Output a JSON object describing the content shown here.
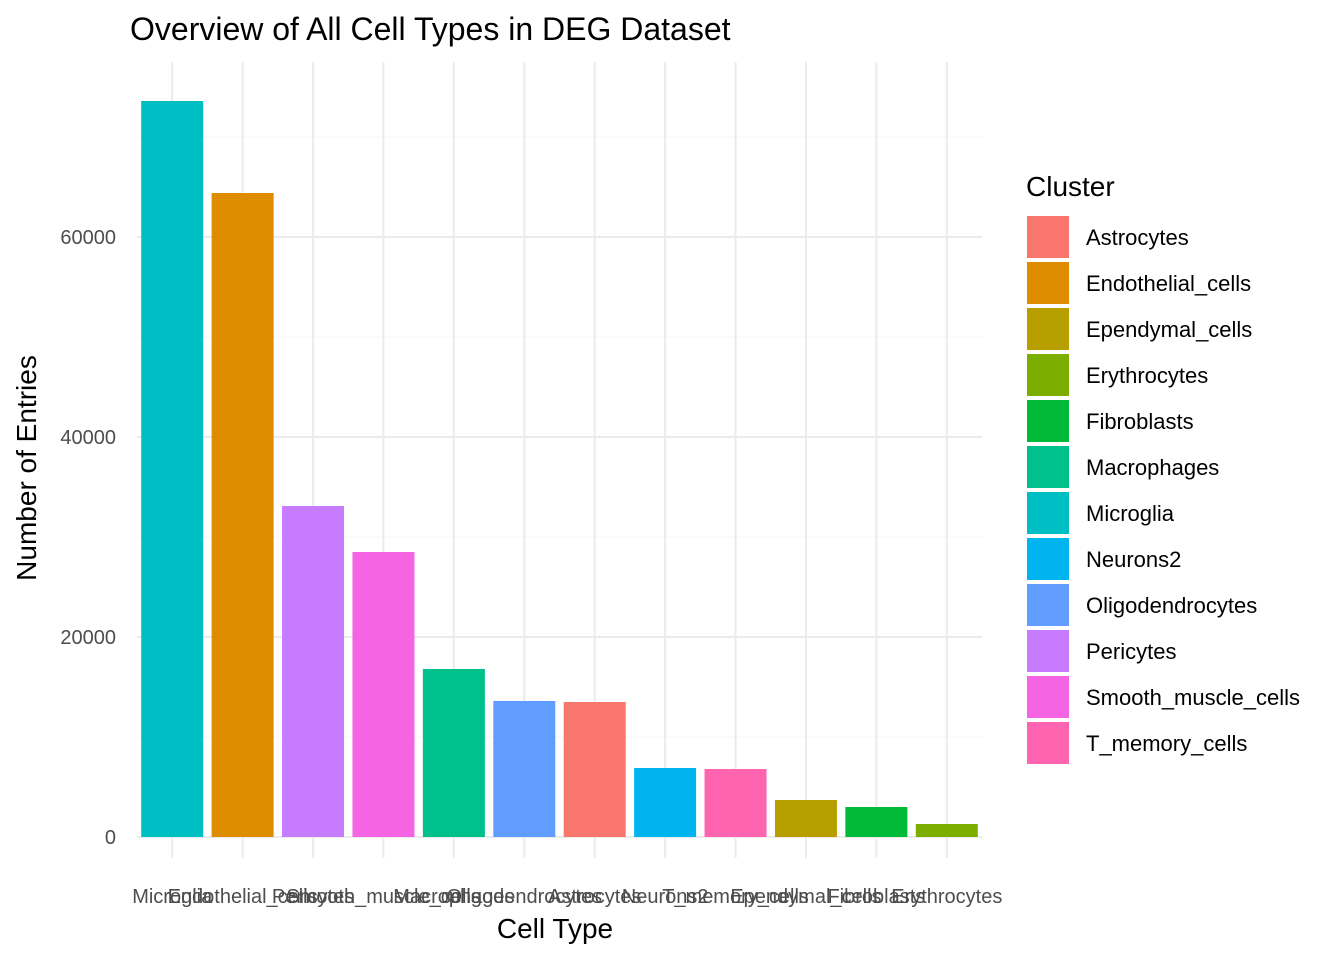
{
  "chart_data": {
    "type": "bar",
    "title": "Overview of All Cell Types in DEG Dataset",
    "xlabel": "Cell Type",
    "ylabel": "Number of Entries",
    "ylim": [
      0,
      76500
    ],
    "yticks": [
      0,
      20000,
      40000,
      60000
    ],
    "grid": true,
    "legend": {
      "title": "Cluster",
      "position": "right"
    },
    "categories": [
      "Microglia",
      "Endothelial_cells",
      "Pericytes",
      "Smooth_muscle_cells",
      "Macrophages",
      "Oligodendrocytes",
      "Astrocytes",
      "Neurons2",
      "T_memory_cells",
      "Ependymal_cells",
      "Fibroblasts",
      "Erythrocytes"
    ],
    "values": [
      73600,
      64400,
      33100,
      28500,
      16800,
      13600,
      13500,
      6900,
      6800,
      3700,
      3000,
      1300
    ],
    "clusters": [
      {
        "name": "Astrocytes",
        "color": "#F8766D"
      },
      {
        "name": "Endothelial_cells",
        "color": "#DE8C00"
      },
      {
        "name": "Ependymal_cells",
        "color": "#B79F00"
      },
      {
        "name": "Erythrocytes",
        "color": "#7CAE00"
      },
      {
        "name": "Fibroblasts",
        "color": "#00BA38"
      },
      {
        "name": "Macrophages",
        "color": "#00C08B"
      },
      {
        "name": "Microglia",
        "color": "#00BFC4"
      },
      {
        "name": "Neurons2",
        "color": "#00B4F0"
      },
      {
        "name": "Oligodendrocytes",
        "color": "#619CFF"
      },
      {
        "name": "Pericytes",
        "color": "#C77CFF"
      },
      {
        "name": "Smooth_muscle_cells",
        "color": "#F564E3"
      },
      {
        "name": "T_memory_cells",
        "color": "#FF64B0"
      }
    ]
  }
}
